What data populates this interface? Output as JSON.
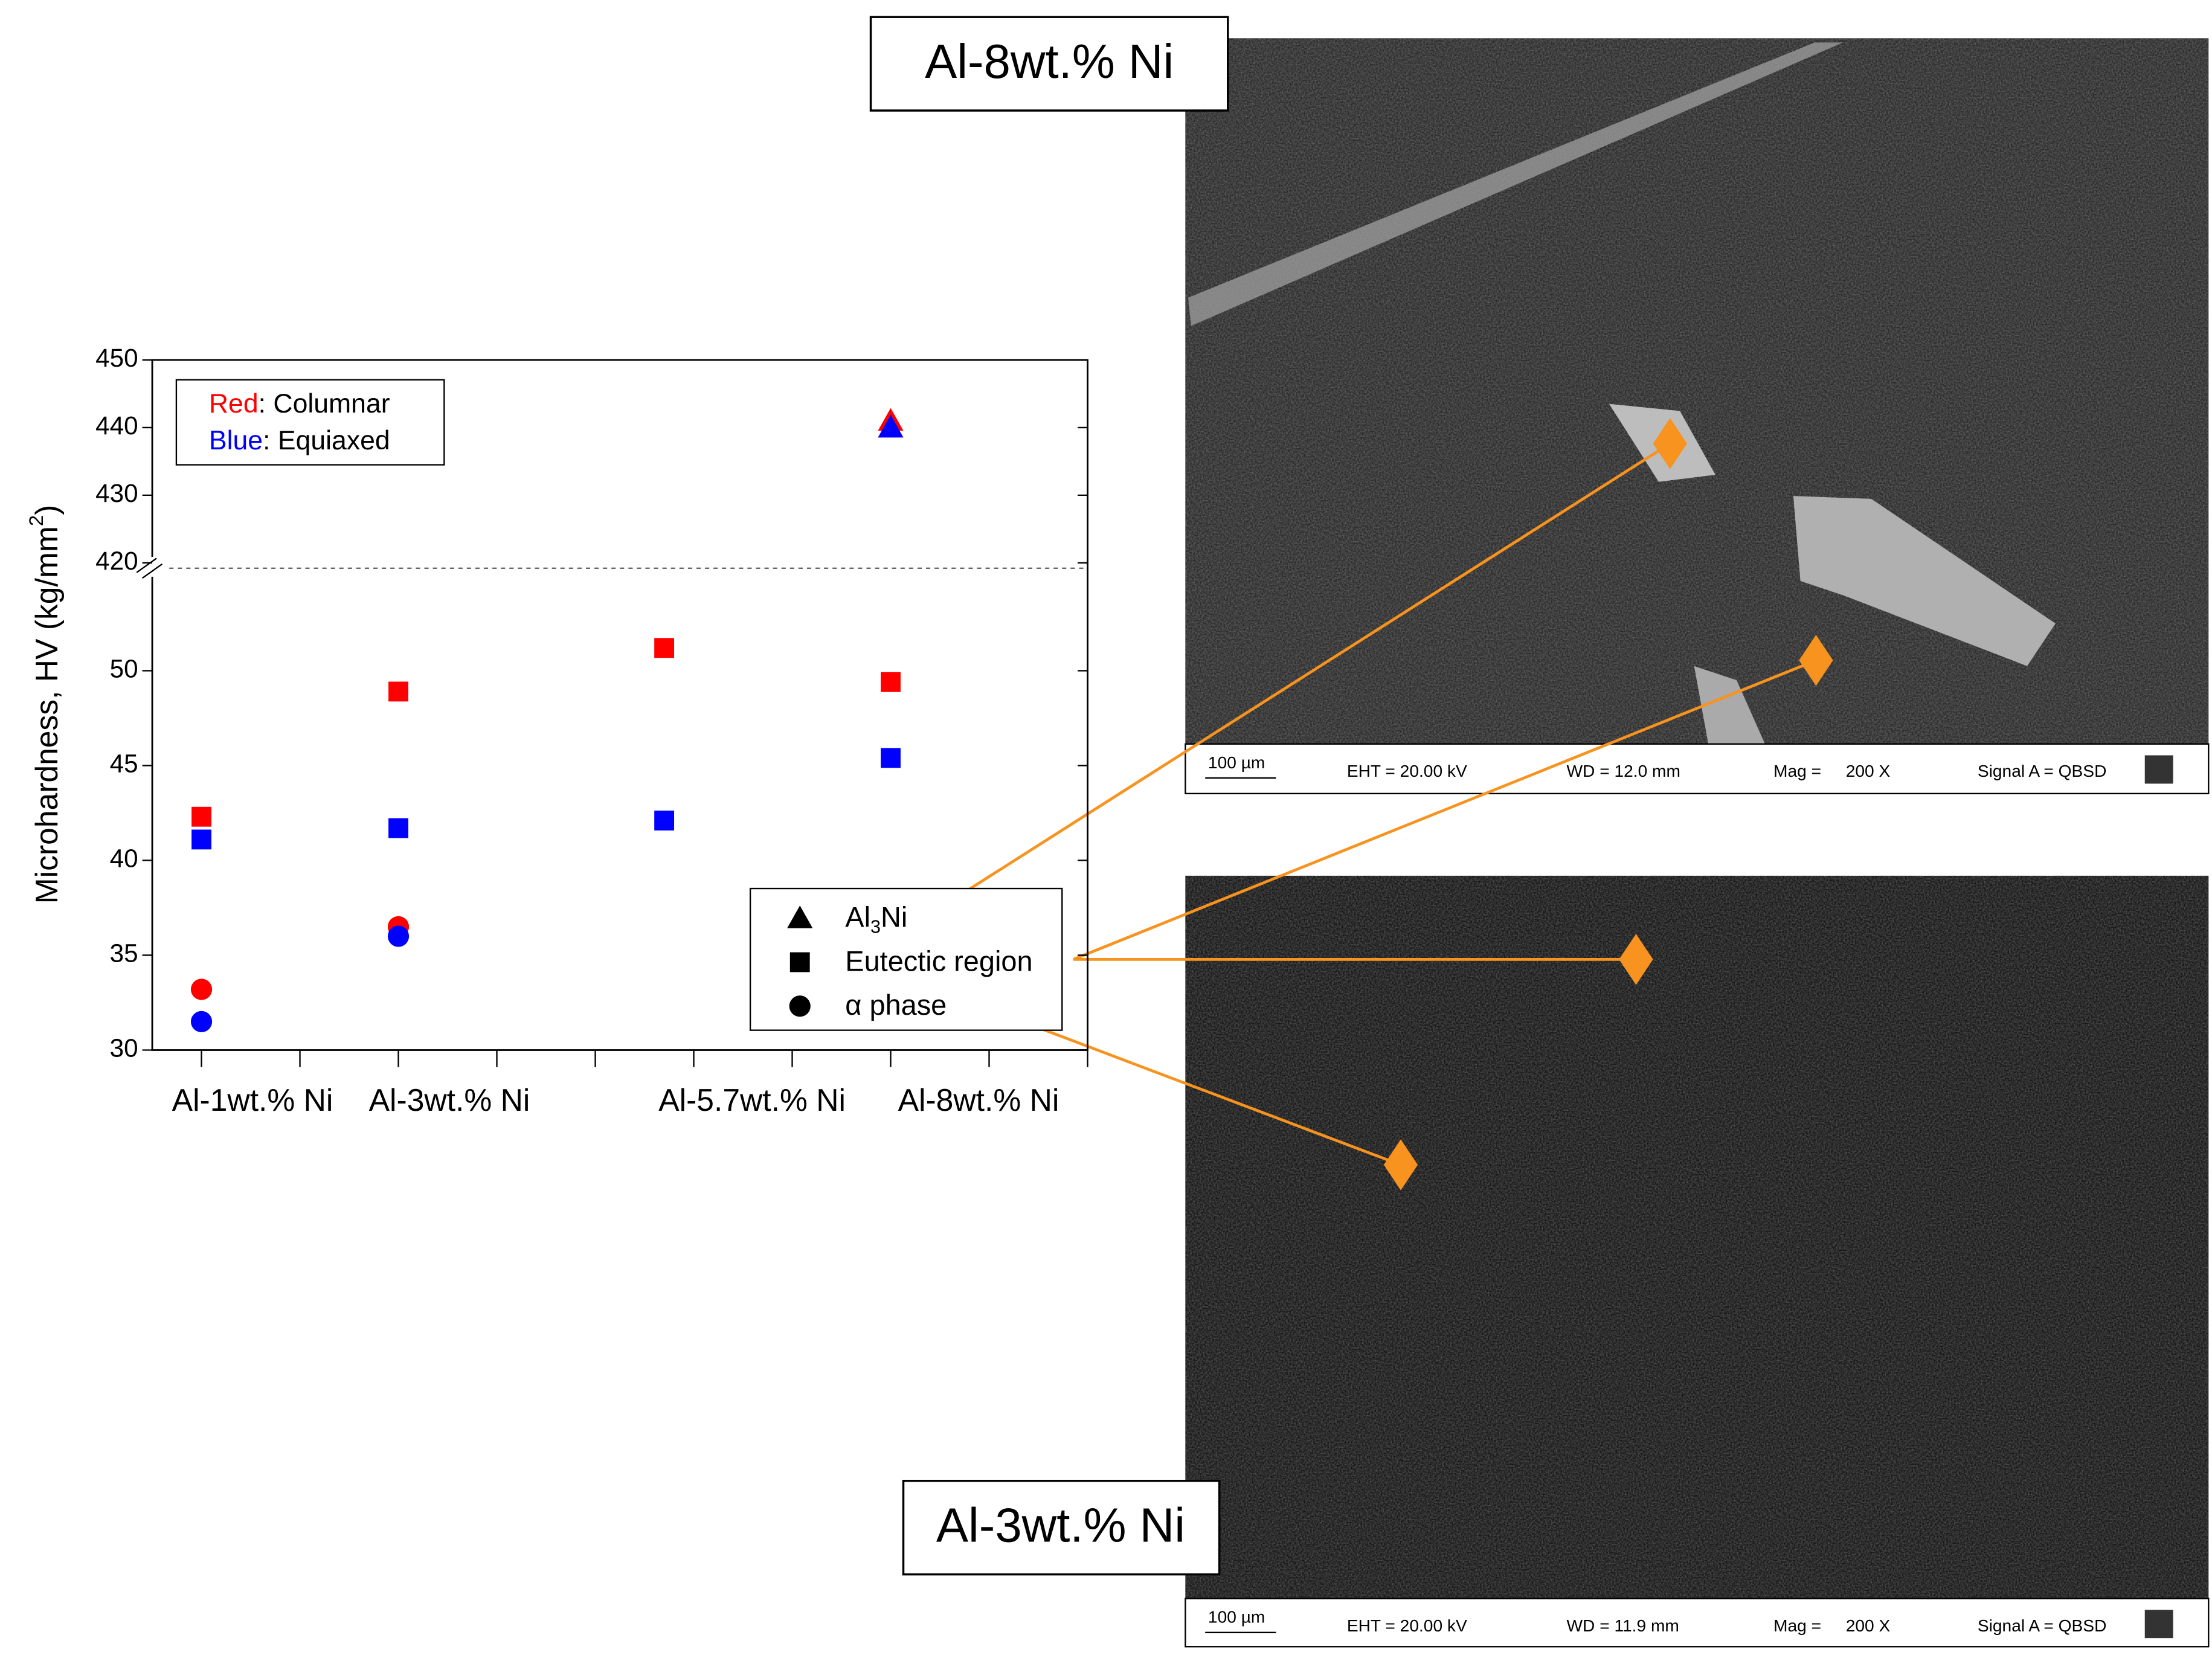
{
  "chart_data": {
    "type": "scatter",
    "y_label": {
      "base": "Microhardness, HV (kg/mm",
      "sup": "2",
      "rest": ")"
    },
    "categories": [
      "Al-1wt.% Ni",
      "Al-3wt.% Ni",
      "Al-5.7wt.% Ni",
      "Al-8wt.% Ni"
    ],
    "x": [
      1,
      3,
      5.7,
      8
    ],
    "xlim": [
      0.5,
      10
    ],
    "xticks": [
      1,
      2,
      3,
      4,
      5,
      6,
      7,
      8,
      9,
      10
    ],
    "y_segments": [
      {
        "ylim": [
          30,
          55.4
        ],
        "yticks": [
          30,
          35,
          40,
          45,
          50
        ]
      },
      {
        "ylim": [
          419.2,
          450
        ],
        "yticks": [
          420,
          430,
          440,
          450
        ]
      }
    ],
    "series": [
      {
        "color": "#ff0000",
        "marker": "square",
        "values": [
          42.3,
          48.9,
          51.2,
          49.4
        ]
      },
      {
        "color": "#0000ff",
        "marker": "square",
        "values": [
          41.1,
          41.7,
          42.1,
          45.4
        ]
      },
      {
        "color": "#ff0000",
        "marker": "circle",
        "values": [
          33.2,
          36.5,
          null,
          null
        ]
      },
      {
        "color": "#0000ff",
        "marker": "circle",
        "values": [
          31.5,
          36.0,
          null,
          null
        ]
      },
      {
        "color": "#ff0000",
        "marker": "triangle",
        "values": [
          null,
          null,
          null,
          441
        ]
      },
      {
        "color": "#0000ff",
        "marker": "triangle",
        "values": [
          null,
          null,
          null,
          440
        ]
      }
    ],
    "color_legend": [
      {
        "label": "Red",
        "text": ": Columnar",
        "color": "#ff0000"
      },
      {
        "label": "Blue",
        "text": ": Equiaxed",
        "color": "#0000ff"
      }
    ],
    "marker_legend": [
      {
        "marker": "triangle",
        "label": {
          "base": "Al",
          "sub": "3",
          "rest": "Ni"
        }
      },
      {
        "marker": "square",
        "label": "Eutectic region"
      },
      {
        "marker": "circle",
        "label": "α phase"
      }
    ]
  },
  "micrographs": [
    {
      "title": "Al-8wt.% Ni",
      "info": [
        "100 µm",
        "EHT = 20.00 kV",
        "WD = 12.0 mm",
        "Mag =",
        "200 X",
        "Signal A = QBSD"
      ]
    },
    {
      "title": "Al-3wt.% Ni",
      "info": [
        "100 µm",
        "EHT = 20.00 kV",
        "WD = 11.9 mm",
        "Mag =",
        "200 X",
        "Signal A = QBSD"
      ]
    }
  ]
}
